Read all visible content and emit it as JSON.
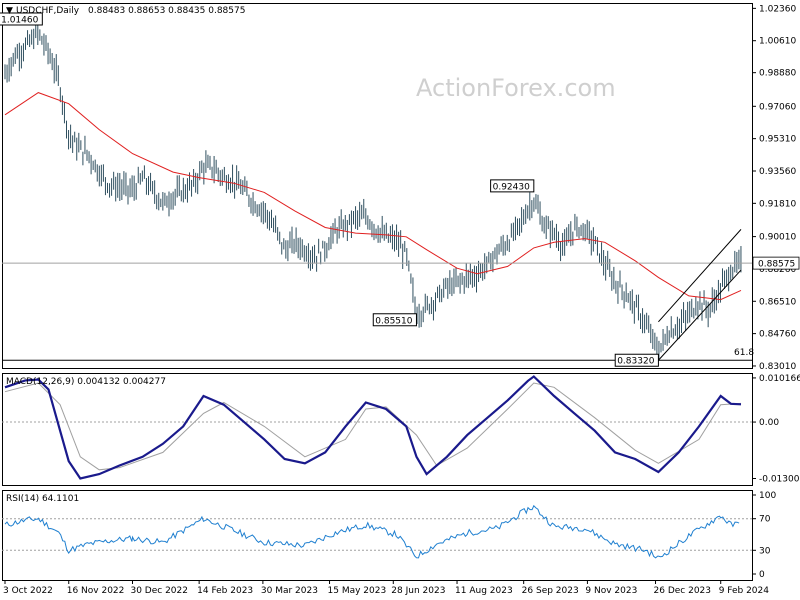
{
  "header": {
    "symbol": "USDCHF,Daily",
    "ohlc": "0.88483 0.88653 0.88435 0.88575"
  },
  "watermark": "ActionForex.com",
  "chart_data": {
    "type": "ohlc",
    "price_panel": {
      "yticks": [
        "1.02360",
        "1.00610",
        "0.98880",
        "0.97060",
        "0.95310",
        "0.93560",
        "0.91810",
        "0.90010",
        "0.88260",
        "0.86510",
        "0.84760",
        "0.83010"
      ],
      "yrange": [
        0.829,
        1.0265
      ],
      "current_price": 0.88575,
      "current_price_label": "0.88575",
      "ma_color": "#e02020",
      "bar_color": "#2f4f5f",
      "annotations": [
        {
          "label": "1.01460",
          "date": "2022-10-26",
          "price": 1.0146
        },
        {
          "label": "0.92430",
          "date": "2023-10-03",
          "price": 0.9243
        },
        {
          "label": "0.85510",
          "date": "2023-07-14",
          "price": 0.8551
        },
        {
          "label": "0.83320",
          "date": "2023-12-28",
          "price": 0.8332
        }
      ],
      "fib_label": "61.8",
      "fib_level": 0.8332,
      "channel": {
        "lower": [
          [
            "2023-12-28",
            0.8332
          ],
          [
            "2024-02-23",
            0.882
          ]
        ],
        "upper": [
          [
            "2023-12-28",
            0.854
          ],
          [
            "2024-02-23",
            0.904
          ]
        ]
      },
      "close_path": [
        [
          "2022-10-03",
          0.988
        ],
        [
          "2022-10-10",
          0.998
        ],
        [
          "2022-10-17",
          1.003
        ],
        [
          "2022-10-26",
          1.01
        ],
        [
          "2022-11-02",
          1.0
        ],
        [
          "2022-11-09",
          0.985
        ],
        [
          "2022-11-16",
          0.955
        ],
        [
          "2022-11-23",
          0.948
        ],
        [
          "2022-11-30",
          0.944
        ],
        [
          "2022-12-07",
          0.935
        ],
        [
          "2022-12-14",
          0.928
        ],
        [
          "2022-12-21",
          0.927
        ],
        [
          "2022-12-30",
          0.925
        ],
        [
          "2023-01-06",
          0.932
        ],
        [
          "2023-01-13",
          0.925
        ],
        [
          "2023-01-20",
          0.918
        ],
        [
          "2023-01-27",
          0.922
        ],
        [
          "2023-02-03",
          0.925
        ],
        [
          "2023-02-10",
          0.928
        ],
        [
          "2023-02-17",
          0.938
        ],
        [
          "2023-02-24",
          0.937
        ],
        [
          "2023-03-03",
          0.932
        ],
        [
          "2023-03-10",
          0.93
        ],
        [
          "2023-03-17",
          0.925
        ],
        [
          "2023-03-24",
          0.918
        ],
        [
          "2023-03-31",
          0.914
        ],
        [
          "2023-04-07",
          0.905
        ],
        [
          "2023-04-14",
          0.893
        ],
        [
          "2023-04-21",
          0.897
        ],
        [
          "2023-04-28",
          0.893
        ],
        [
          "2023-05-05",
          0.889
        ],
        [
          "2023-05-12",
          0.894
        ],
        [
          "2023-05-19",
          0.903
        ],
        [
          "2023-05-26",
          0.906
        ],
        [
          "2023-06-02",
          0.91
        ],
        [
          "2023-06-09",
          0.911
        ],
        [
          "2023-06-16",
          0.904
        ],
        [
          "2023-06-23",
          0.9
        ],
        [
          "2023-06-30",
          0.898
        ],
        [
          "2023-07-07",
          0.89
        ],
        [
          "2023-07-14",
          0.858
        ],
        [
          "2023-07-21",
          0.862
        ],
        [
          "2023-07-28",
          0.867
        ],
        [
          "2023-08-04",
          0.873
        ],
        [
          "2023-08-11",
          0.875
        ],
        [
          "2023-08-18",
          0.878
        ],
        [
          "2023-08-25",
          0.88
        ],
        [
          "2023-09-01",
          0.885
        ],
        [
          "2023-09-08",
          0.892
        ],
        [
          "2023-09-15",
          0.897
        ],
        [
          "2023-09-22",
          0.905
        ],
        [
          "2023-09-29",
          0.915
        ],
        [
          "2023-10-03",
          0.92
        ],
        [
          "2023-10-10",
          0.906
        ],
        [
          "2023-10-17",
          0.902
        ],
        [
          "2023-10-24",
          0.894
        ],
        [
          "2023-10-31",
          0.905
        ],
        [
          "2023-11-07",
          0.904
        ],
        [
          "2023-11-14",
          0.897
        ],
        [
          "2023-11-21",
          0.885
        ],
        [
          "2023-11-28",
          0.875
        ],
        [
          "2023-12-05",
          0.87
        ],
        [
          "2023-12-12",
          0.862
        ],
        [
          "2023-12-19",
          0.853
        ],
        [
          "2023-12-28",
          0.838
        ],
        [
          "2024-01-04",
          0.848
        ],
        [
          "2024-01-11",
          0.852
        ],
        [
          "2024-01-18",
          0.858
        ],
        [
          "2024-01-25",
          0.865
        ],
        [
          "2024-02-01",
          0.86
        ],
        [
          "2024-02-09",
          0.872
        ],
        [
          "2024-02-16",
          0.882
        ],
        [
          "2024-02-23",
          0.886
        ]
      ],
      "ma_path": [
        [
          "2022-10-03",
          0.966
        ],
        [
          "2022-10-26",
          0.978
        ],
        [
          "2022-11-16",
          0.972
        ],
        [
          "2022-12-07",
          0.958
        ],
        [
          "2022-12-30",
          0.945
        ],
        [
          "2023-01-27",
          0.935
        ],
        [
          "2023-02-14",
          0.932
        ],
        [
          "2023-03-10",
          0.929
        ],
        [
          "2023-03-31",
          0.924
        ],
        [
          "2023-04-21",
          0.914
        ],
        [
          "2023-05-12",
          0.905
        ],
        [
          "2023-06-02",
          0.902
        ],
        [
          "2023-06-23",
          0.901
        ],
        [
          "2023-07-07",
          0.9
        ],
        [
          "2023-07-21",
          0.893
        ],
        [
          "2023-08-11",
          0.883
        ],
        [
          "2023-08-25",
          0.88
        ],
        [
          "2023-09-15",
          0.884
        ],
        [
          "2023-10-03",
          0.894
        ],
        [
          "2023-10-17",
          0.897
        ],
        [
          "2023-11-07",
          0.899
        ],
        [
          "2023-11-21",
          0.897
        ],
        [
          "2023-12-12",
          0.887
        ],
        [
          "2023-12-28",
          0.878
        ],
        [
          "2024-01-18",
          0.868
        ],
        [
          "2024-02-09",
          0.866
        ],
        [
          "2024-02-23",
          0.871
        ]
      ]
    },
    "macd_panel": {
      "label": "MACD(12,26,9) 0.004132 0.004277",
      "yticks": [
        "0.010166",
        "0.00",
        "-0.013006"
      ],
      "yrange": [
        -0.0145,
        0.0113
      ],
      "macd_color": "#1a1a8c",
      "signal_color": "#a0a0a0",
      "macd": [
        [
          "2022-10-03",
          0.008
        ],
        [
          "2022-10-17",
          0.0096
        ],
        [
          "2022-10-26",
          0.0098
        ],
        [
          "2022-11-02",
          0.0075
        ],
        [
          "2022-11-10",
          -0.002
        ],
        [
          "2022-11-16",
          -0.009
        ],
        [
          "2022-11-24",
          -0.013
        ],
        [
          "2022-12-07",
          -0.012
        ],
        [
          "2022-12-21",
          -0.01
        ],
        [
          "2023-01-06",
          -0.008
        ],
        [
          "2023-01-20",
          -0.005
        ],
        [
          "2023-02-03",
          -0.001
        ],
        [
          "2023-02-17",
          0.006
        ],
        [
          "2023-03-03",
          0.004
        ],
        [
          "2023-03-17",
          0.0
        ],
        [
          "2023-03-31",
          -0.004
        ],
        [
          "2023-04-14",
          -0.0085
        ],
        [
          "2023-04-28",
          -0.0095
        ],
        [
          "2023-05-12",
          -0.007
        ],
        [
          "2023-05-26",
          -0.001
        ],
        [
          "2023-06-09",
          0.0045
        ],
        [
          "2023-06-23",
          0.003
        ],
        [
          "2023-07-07",
          -0.001
        ],
        [
          "2023-07-14",
          -0.008
        ],
        [
          "2023-07-21",
          -0.012
        ],
        [
          "2023-08-04",
          -0.008
        ],
        [
          "2023-08-18",
          -0.003
        ],
        [
          "2023-09-01",
          0.001
        ],
        [
          "2023-09-15",
          0.005
        ],
        [
          "2023-09-29",
          0.0095
        ],
        [
          "2023-10-03",
          0.0105
        ],
        [
          "2023-10-17",
          0.006
        ],
        [
          "2023-10-31",
          0.002
        ],
        [
          "2023-11-14",
          -0.002
        ],
        [
          "2023-11-28",
          -0.007
        ],
        [
          "2023-12-12",
          -0.0085
        ],
        [
          "2023-12-28",
          -0.0115
        ],
        [
          "2024-01-11",
          -0.007
        ],
        [
          "2024-01-25",
          -0.001
        ],
        [
          "2024-02-09",
          0.006
        ],
        [
          "2024-02-16",
          0.0042
        ],
        [
          "2024-02-23",
          0.0041
        ]
      ],
      "signal": [
        [
          "2022-10-03",
          0.007
        ],
        [
          "2022-10-26",
          0.009
        ],
        [
          "2022-11-10",
          0.004
        ],
        [
          "2022-11-24",
          -0.008
        ],
        [
          "2022-12-07",
          -0.011
        ],
        [
          "2022-12-21",
          -0.0105
        ],
        [
          "2023-01-20",
          -0.007
        ],
        [
          "2023-02-17",
          0.002
        ],
        [
          "2023-03-03",
          0.0045
        ],
        [
          "2023-03-31",
          -0.001
        ],
        [
          "2023-04-28",
          -0.008
        ],
        [
          "2023-05-26",
          -0.004
        ],
        [
          "2023-06-09",
          0.003
        ],
        [
          "2023-06-23",
          0.0035
        ],
        [
          "2023-07-14",
          -0.003
        ],
        [
          "2023-07-28",
          -0.01
        ],
        [
          "2023-08-18",
          -0.006
        ],
        [
          "2023-09-15",
          0.003
        ],
        [
          "2023-10-03",
          0.009
        ],
        [
          "2023-10-17",
          0.008
        ],
        [
          "2023-11-14",
          0.001
        ],
        [
          "2023-12-12",
          -0.0065
        ],
        [
          "2023-12-28",
          -0.0095
        ],
        [
          "2024-01-25",
          -0.004
        ],
        [
          "2024-02-09",
          0.004
        ],
        [
          "2024-02-23",
          0.0043
        ]
      ]
    },
    "rsi_panel": {
      "label": "RSI(14) 64.1101",
      "yticks": [
        "100",
        "70",
        "30",
        "0"
      ],
      "yrange": [
        0,
        100
      ],
      "levels": [
        70,
        30
      ],
      "line_color": "#2080d0",
      "rsi": [
        [
          "2022-10-03",
          62
        ],
        [
          "2022-10-17",
          68
        ],
        [
          "2022-10-26",
          70
        ],
        [
          "2022-11-09",
          52
        ],
        [
          "2022-11-16",
          30
        ],
        [
          "2022-11-30",
          38
        ],
        [
          "2022-12-14",
          42
        ],
        [
          "2022-12-30",
          45
        ],
        [
          "2023-01-20",
          40
        ],
        [
          "2023-02-17",
          70
        ],
        [
          "2023-03-10",
          55
        ],
        [
          "2023-03-31",
          40
        ],
        [
          "2023-04-28",
          36
        ],
        [
          "2023-05-19",
          52
        ],
        [
          "2023-06-09",
          62
        ],
        [
          "2023-06-30",
          50
        ],
        [
          "2023-07-14",
          22
        ],
        [
          "2023-07-28",
          38
        ],
        [
          "2023-08-18",
          52
        ],
        [
          "2023-09-08",
          58
        ],
        [
          "2023-09-29",
          82
        ],
        [
          "2023-10-03",
          85
        ],
        [
          "2023-10-17",
          60
        ],
        [
          "2023-11-07",
          58
        ],
        [
          "2023-11-28",
          38
        ],
        [
          "2023-12-19",
          30
        ],
        [
          "2023-12-28",
          20
        ],
        [
          "2024-01-18",
          48
        ],
        [
          "2024-02-09",
          74
        ],
        [
          "2024-02-16",
          62
        ],
        [
          "2024-02-23",
          64
        ]
      ]
    },
    "x_axis": {
      "start": "2022-10-03",
      "end": "2024-02-23",
      "tick_labels": [
        {
          "label": "3 Oct 2022",
          "date": "2022-10-03"
        },
        {
          "label": "16 Nov 2022",
          "date": "2022-11-16"
        },
        {
          "label": "30 Dec 2022",
          "date": "2022-12-30"
        },
        {
          "label": "14 Feb 2023",
          "date": "2023-02-14"
        },
        {
          "label": "30 Mar 2023",
          "date": "2023-03-30"
        },
        {
          "label": "15 May 2023",
          "date": "2023-05-15"
        },
        {
          "label": "28 Jun 2023",
          "date": "2023-06-28"
        },
        {
          "label": "11 Aug 2023",
          "date": "2023-08-11"
        },
        {
          "label": "26 Sep 2023",
          "date": "2023-09-26"
        },
        {
          "label": "9 Nov 2023",
          "date": "2023-11-09"
        },
        {
          "label": "26 Dec 2023",
          "date": "2023-12-26"
        },
        {
          "label": "9 Feb 2024",
          "date": "2024-02-09"
        }
      ]
    }
  }
}
